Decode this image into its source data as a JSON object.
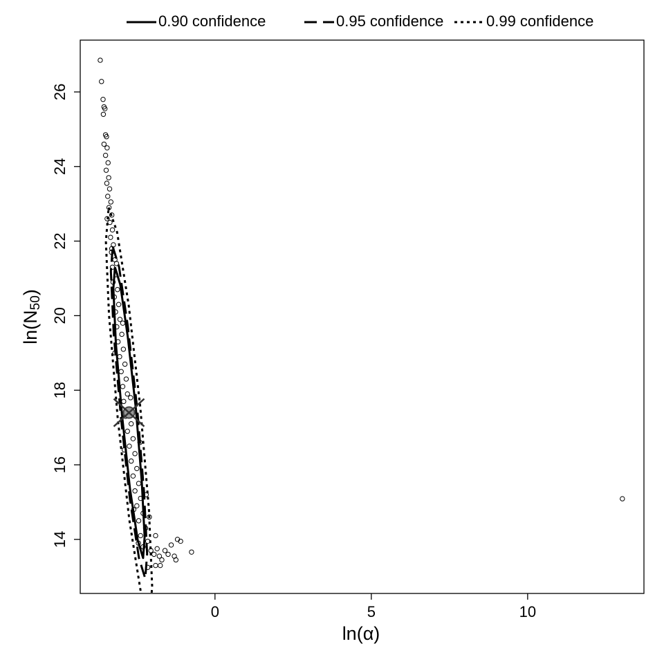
{
  "chart_data": {
    "type": "scatter",
    "xlabel": "ln(α)",
    "ylabel": "ln(N",
    "ylabel_subscript": "50",
    "ylabel_end": ")",
    "xlim": [
      -4.31,
      13.72
    ],
    "ylim": [
      12.55,
      27.39
    ],
    "xticks": [
      0,
      5,
      10
    ],
    "yticks": [
      14,
      16,
      18,
      20,
      22,
      24,
      26
    ],
    "legend": "top",
    "points": {
      "color": "#000000",
      "x": [
        -3.67,
        -3.63,
        -3.58,
        -3.55,
        -3.52,
        -3.57,
        -3.5,
        -3.47,
        -3.55,
        -3.45,
        -3.5,
        -3.42,
        -3.48,
        -3.4,
        -3.46,
        -3.37,
        -3.43,
        -3.33,
        -3.39,
        -3.3,
        -3.36,
        -3.28,
        -3.34,
        -3.25,
        -3.31,
        -3.2,
        -3.28,
        -3.17,
        -3.26,
        -3.12,
        -3.22,
        -3.08,
        -3.18,
        -3.04,
        -3.14,
        -2.98,
        -3.1,
        -2.93,
        -3.05,
        -2.88,
        -3.0,
        -2.84,
        -2.95,
        -2.8,
        -2.92,
        -2.74,
        -2.86,
        -2.68,
        -2.8,
        -2.62,
        -2.74,
        -2.56,
        -2.68,
        -2.5,
        -2.62,
        -2.44,
        -2.56,
        -2.38,
        -2.5,
        -2.3,
        -2.44,
        -2.22,
        -2.38,
        -2.15,
        -2.3,
        -2.05,
        -1.95,
        -1.85,
        -1.78,
        -1.7,
        -1.6,
        -1.5,
        -1.4,
        -1.3,
        -1.2,
        -1.1,
        -1.25,
        -0.75,
        -1.9,
        -2.15,
        -1.75,
        13.03,
        -3.3,
        -3.45,
        -3.15,
        -2.95,
        -3.2,
        -2.7,
        -2.9,
        -2.4,
        -2.2,
        -2.6,
        -2.1,
        -1.9,
        -2.45
      ],
      "y": [
        26.85,
        26.28,
        25.8,
        25.6,
        25.55,
        25.4,
        24.85,
        24.8,
        24.6,
        24.5,
        24.3,
        24.1,
        23.9,
        23.7,
        23.55,
        23.4,
        23.2,
        23.05,
        22.9,
        22.7,
        22.5,
        22.3,
        22.1,
        21.9,
        21.7,
        21.5,
        21.3,
        21.1,
        20.9,
        20.7,
        20.5,
        20.3,
        20.1,
        19.9,
        19.7,
        19.5,
        19.3,
        19.1,
        18.9,
        18.7,
        18.5,
        18.3,
        18.1,
        17.9,
        17.7,
        17.5,
        17.3,
        17.1,
        16.9,
        16.7,
        16.5,
        16.3,
        16.1,
        15.9,
        15.7,
        15.5,
        15.3,
        15.1,
        14.9,
        14.7,
        14.5,
        14.3,
        14.1,
        13.95,
        13.8,
        13.7,
        13.6,
        13.75,
        13.55,
        13.45,
        13.7,
        13.6,
        13.85,
        13.55,
        14.0,
        13.95,
        13.45,
        13.66,
        13.3,
        13.25,
        13.3,
        15.09,
        21.8,
        22.6,
        21.4,
        19.8,
        19.0,
        17.8,
        16.4,
        16.6,
        15.2,
        14.8,
        14.6,
        14.1,
        13.9
      ]
    },
    "ellipses": [
      {
        "name": "0.90 confidence",
        "dash": "solid",
        "x": [
          -3.2,
          -3.03,
          -2.79,
          -2.53,
          -2.34,
          -2.25,
          -2.3,
          -2.47,
          -2.72,
          -2.97,
          -3.17,
          -3.25,
          -3.2
        ],
        "y": [
          21.3,
          20.83,
          19.44,
          17.5,
          15.54,
          14.07,
          13.5,
          13.97,
          15.36,
          17.3,
          19.26,
          20.73,
          21.3
        ]
      },
      {
        "name": "0.95 confidence",
        "dash": "dashed",
        "x": [
          -3.27,
          -3.07,
          -2.79,
          -2.49,
          -2.27,
          -2.17,
          -2.23,
          -2.43,
          -2.72,
          -3.01,
          -3.24,
          -3.33,
          -3.27
        ],
        "y": [
          21.85,
          21.31,
          19.73,
          17.52,
          15.28,
          13.61,
          12.95,
          13.49,
          15.07,
          17.28,
          19.52,
          21.19,
          21.85
        ]
      },
      {
        "name": "0.99 confidence",
        "dash": "dotted",
        "x": [
          -3.4,
          -3.13,
          -2.76,
          -2.39,
          -2.11,
          -2.01,
          -2.1,
          -2.37,
          -2.74,
          -3.11,
          -3.39,
          -3.49,
          -3.4
        ],
        "y": [
          22.9,
          22.24,
          20.28,
          17.55,
          14.78,
          12.72,
          11.9,
          12.57,
          14.52,
          17.25,
          20.02,
          21.99,
          22.9
        ]
      }
    ],
    "estimate": {
      "x": -2.75,
      "y": 17.4
    }
  }
}
